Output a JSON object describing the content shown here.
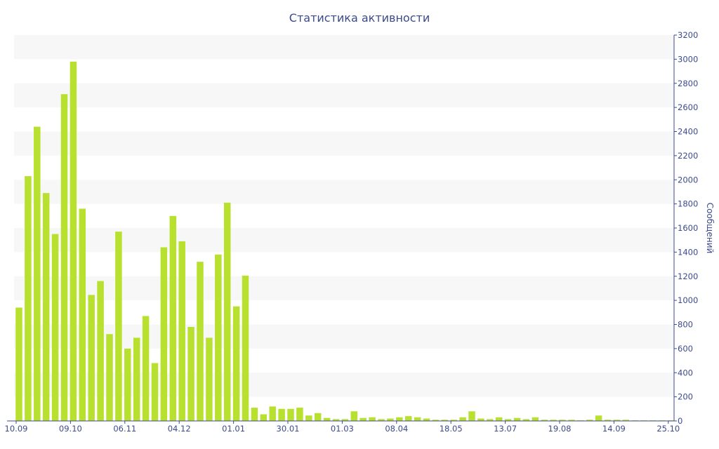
{
  "chart_data": {
    "type": "bar",
    "title": "Статистика активности",
    "ylabel": "Сообщений",
    "xlabel": "",
    "y_axis_side": "right",
    "ylim": [
      0,
      3200
    ],
    "yticks": [
      0,
      200,
      400,
      600,
      800,
      1000,
      1200,
      1400,
      1600,
      1800,
      2000,
      2200,
      2400,
      2600,
      2800,
      3000,
      3200
    ],
    "x_tick_labels": [
      {
        "label": "10.09",
        "index": 0
      },
      {
        "label": "09.10",
        "index": 6
      },
      {
        "label": "06.11",
        "index": 12
      },
      {
        "label": "04.12",
        "index": 18
      },
      {
        "label": "01.01",
        "index": 24
      },
      {
        "label": "30.01",
        "index": 30
      },
      {
        "label": "01.03",
        "index": 36
      },
      {
        "label": "08.04",
        "index": 42
      },
      {
        "label": "18.05",
        "index": 48
      },
      {
        "label": "13.07",
        "index": 54
      },
      {
        "label": "19.08",
        "index": 60
      },
      {
        "label": "14.09",
        "index": 66
      },
      {
        "label": "25.10",
        "index": 72
      }
    ],
    "bar_count": 73,
    "values": [
      940,
      2030,
      2440,
      1890,
      1550,
      2710,
      2980,
      1760,
      1045,
      1160,
      720,
      1570,
      600,
      690,
      870,
      480,
      1440,
      1700,
      1490,
      780,
      1320,
      690,
      1380,
      1810,
      950,
      1205,
      110,
      55,
      120,
      100,
      100,
      110,
      45,
      65,
      25,
      15,
      15,
      80,
      25,
      30,
      15,
      20,
      30,
      40,
      30,
      20,
      10,
      10,
      10,
      30,
      80,
      20,
      15,
      30,
      15,
      25,
      15,
      30,
      10,
      10,
      10,
      10,
      5,
      10,
      45,
      10,
      10,
      10,
      5,
      5,
      5,
      5,
      5
    ],
    "grid": "alternating horizontal bands",
    "colors": {
      "bar": "#b8e02e",
      "band": "#f7f7f7",
      "text": "#3b4a8c",
      "axis": "#3b4a8c"
    }
  }
}
